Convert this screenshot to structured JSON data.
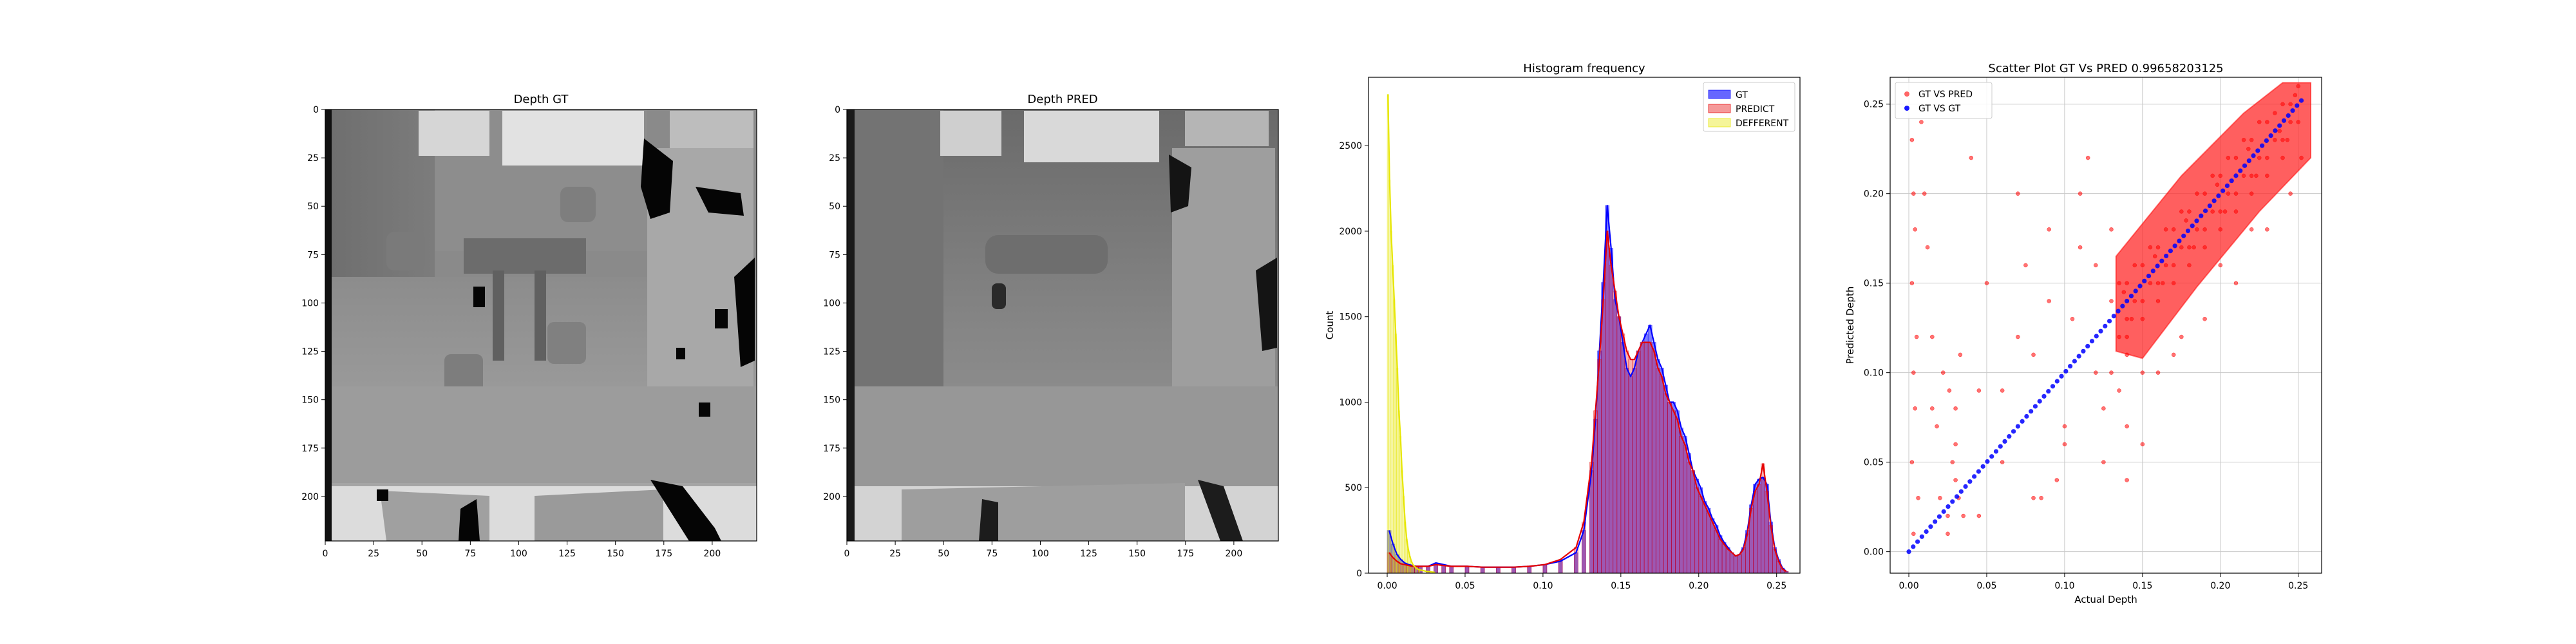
{
  "chart_data": [
    {
      "type": "heatmap",
      "title": "Depth GT",
      "xticks": [
        0,
        25,
        50,
        75,
        100,
        125,
        150,
        175,
        200
      ],
      "yticks": [
        0,
        25,
        50,
        75,
        100,
        125,
        150,
        175,
        200
      ],
      "xlim": [
        0,
        223
      ],
      "ylim": [
        223,
        0
      ],
      "colormap": "gray"
    },
    {
      "type": "heatmap",
      "title": "Depth PRED",
      "xticks": [
        0,
        25,
        50,
        75,
        100,
        125,
        150,
        175,
        200
      ],
      "yticks": [
        0,
        25,
        50,
        75,
        100,
        125,
        150,
        175,
        200
      ],
      "xlim": [
        0,
        223
      ],
      "ylim": [
        223,
        0
      ],
      "colormap": "gray"
    },
    {
      "type": "bar",
      "title": "Histogram frequency",
      "xlabel": "",
      "ylabel": "Count",
      "xlim": [
        -0.012,
        0.265
      ],
      "ylim": [
        0,
        2900
      ],
      "xticks": [
        "0.00",
        "0.05",
        "0.10",
        "0.15",
        "0.20",
        "0.25"
      ],
      "yticks": [
        "0",
        "500",
        "1000",
        "1500",
        "2000",
        "2500"
      ],
      "legend_position": "top-right",
      "series": [
        {
          "name": "GT",
          "color": "#0000ff",
          "bins_x": [
            0.0,
            0.0025,
            0.005,
            0.0075,
            0.01,
            0.0125,
            0.015,
            0.0175,
            0.02,
            0.025,
            0.03,
            0.035,
            0.04,
            0.05,
            0.06,
            0.07,
            0.08,
            0.09,
            0.1,
            0.11,
            0.12,
            0.125,
            0.13,
            0.1325,
            0.135,
            0.1375,
            0.14,
            0.1425,
            0.145,
            0.1475,
            0.15,
            0.1525,
            0.155,
            0.1575,
            0.16,
            0.1625,
            0.165,
            0.1675,
            0.17,
            0.1725,
            0.175,
            0.1775,
            0.18,
            0.1825,
            0.185,
            0.1875,
            0.19,
            0.1925,
            0.195,
            0.1975,
            0.2,
            0.2025,
            0.205,
            0.2075,
            0.21,
            0.2125,
            0.215,
            0.2175,
            0.22,
            0.2225,
            0.225,
            0.2275,
            0.23,
            0.2325,
            0.235,
            0.2375,
            0.24,
            0.2425,
            0.245,
            0.2475,
            0.25,
            0.2525,
            0.255
          ],
          "counts": [
            250,
            170,
            110,
            80,
            60,
            50,
            45,
            40,
            40,
            40,
            60,
            50,
            40,
            40,
            35,
            35,
            35,
            40,
            50,
            70,
            120,
            250,
            600,
            900,
            1300,
            1700,
            2150,
            1900,
            1600,
            1500,
            1350,
            1200,
            1150,
            1200,
            1300,
            1350,
            1400,
            1450,
            1350,
            1250,
            1200,
            1100,
            1000,
            1000,
            950,
            850,
            800,
            700,
            600,
            550,
            500,
            420,
            380,
            320,
            280,
            220,
            180,
            150,
            120,
            100,
            110,
            150,
            250,
            400,
            520,
            550,
            560,
            520,
            300,
            150,
            80,
            30,
            10
          ]
        },
        {
          "name": "PREDICT",
          "color": "#e60000",
          "bins_x": [
            0.0,
            0.0025,
            0.005,
            0.0075,
            0.01,
            0.0125,
            0.015,
            0.0175,
            0.02,
            0.025,
            0.03,
            0.035,
            0.04,
            0.05,
            0.06,
            0.07,
            0.08,
            0.09,
            0.1,
            0.11,
            0.12,
            0.125,
            0.13,
            0.1325,
            0.135,
            0.1375,
            0.14,
            0.1425,
            0.145,
            0.1475,
            0.15,
            0.1525,
            0.155,
            0.1575,
            0.16,
            0.1625,
            0.165,
            0.1675,
            0.17,
            0.1725,
            0.175,
            0.1775,
            0.18,
            0.1825,
            0.185,
            0.1875,
            0.19,
            0.1925,
            0.195,
            0.1975,
            0.2,
            0.2025,
            0.205,
            0.2075,
            0.21,
            0.2125,
            0.215,
            0.2175,
            0.22,
            0.2225,
            0.225,
            0.2275,
            0.23,
            0.2325,
            0.235,
            0.2375,
            0.24,
            0.2425,
            0.245,
            0.2475,
            0.25,
            0.2525,
            0.255
          ],
          "counts": [
            120,
            90,
            70,
            55,
            50,
            45,
            40,
            40,
            40,
            40,
            50,
            45,
            40,
            40,
            35,
            35,
            35,
            40,
            50,
            80,
            150,
            300,
            650,
            950,
            1250,
            1600,
            2000,
            1800,
            1650,
            1500,
            1400,
            1300,
            1250,
            1250,
            1300,
            1350,
            1350,
            1350,
            1300,
            1200,
            1150,
            1050,
            1000,
            950,
            900,
            800,
            750,
            650,
            600,
            500,
            450,
            400,
            350,
            300,
            250,
            200,
            170,
            140,
            120,
            100,
            110,
            140,
            230,
            380,
            480,
            520,
            640,
            480,
            280,
            140,
            70,
            25,
            10
          ]
        },
        {
          "name": "DEFFERENT",
          "color": "#e6e600",
          "bins_x": [
            0.0,
            0.001,
            0.002,
            0.003,
            0.004,
            0.005,
            0.006,
            0.007,
            0.008,
            0.009,
            0.01,
            0.011,
            0.012,
            0.013,
            0.014,
            0.015,
            0.016,
            0.018,
            0.02,
            0.025,
            0.03
          ],
          "counts": [
            2800,
            2300,
            2000,
            1800,
            1600,
            1400,
            1200,
            950,
            800,
            600,
            450,
            300,
            200,
            140,
            100,
            70,
            50,
            30,
            20,
            10,
            5
          ]
        }
      ]
    },
    {
      "type": "scatter",
      "title": "Scatter Plot GT Vs PRED 0.99658203125",
      "xlabel": "Actual Depth",
      "ylabel": "Predicted Depth",
      "xlim": [
        -0.012,
        0.265
      ],
      "ylim": [
        -0.012,
        0.265
      ],
      "xticks": [
        "0.00",
        "0.05",
        "0.10",
        "0.15",
        "0.20",
        "0.25"
      ],
      "yticks": [
        "0.00",
        "0.05",
        "0.10",
        "0.15",
        "0.20",
        "0.25"
      ],
      "grid": true,
      "legend_position": "top-left",
      "series": [
        {
          "name": "GT VS PRED",
          "color": "#ff0000",
          "x": [
            0.002,
            0.003,
            0.004,
            0.002,
            0.005,
            0.003,
            0.004,
            0.002,
            0.006,
            0.003,
            0.01,
            0.015,
            0.02,
            0.025,
            0.028,
            0.03,
            0.032,
            0.035,
            0.025,
            0.03,
            0.045,
            0.06,
            0.07,
            0.08,
            0.09,
            0.1,
            0.11,
            0.12,
            0.05,
            0.04,
            0.075,
            0.095,
            0.105,
            0.115,
            0.125,
            0.13,
            0.135,
            0.14,
            0.145,
            0.15,
            0.155,
            0.16,
            0.165,
            0.17,
            0.175,
            0.18,
            0.185,
            0.19,
            0.195,
            0.2,
            0.205,
            0.21,
            0.215,
            0.22,
            0.225,
            0.23,
            0.235,
            0.24,
            0.245,
            0.25,
            0.252,
            0.14,
            0.145,
            0.15,
            0.155,
            0.16,
            0.165,
            0.17,
            0.175,
            0.18,
            0.185,
            0.19,
            0.195,
            0.2,
            0.205,
            0.21,
            0.215,
            0.22,
            0.225,
            0.23,
            0.235,
            0.24,
            0.245,
            0.25,
            0.135,
            0.14,
            0.15,
            0.16,
            0.17,
            0.18,
            0.19,
            0.2,
            0.21,
            0.22,
            0.23,
            0.24,
            0.248,
            0.138,
            0.158,
            0.178,
            0.198,
            0.218,
            0.238,
            0.143,
            0.163,
            0.183,
            0.203,
            0.223,
            0.243,
            0.14,
            0.15,
            0.175,
            0.2,
            0.22,
            0.245,
            0.06,
            0.08,
            0.1,
            0.12,
            0.045,
            0.09,
            0.11,
            0.03,
            0.015,
            0.008,
            0.012,
            0.018,
            0.022,
            0.026,
            0.033,
            0.07,
            0.085,
            0.13,
            0.125,
            0.135,
            0.14,
            0.15,
            0.16,
            0.17,
            0.13,
            0.14,
            0.19,
            0.21,
            0.23
          ],
          "y": [
            0.23,
            0.2,
            0.18,
            0.15,
            0.12,
            0.1,
            0.08,
            0.05,
            0.03,
            0.01,
            0.2,
            0.08,
            0.03,
            0.02,
            0.05,
            0.06,
            0.03,
            0.02,
            0.01,
            0.04,
            0.09,
            0.05,
            0.12,
            0.03,
            0.18,
            0.07,
            0.2,
            0.1,
            0.15,
            0.22,
            0.16,
            0.04,
            0.13,
            0.22,
            0.08,
            0.14,
            0.12,
            0.15,
            0.14,
            0.16,
            0.15,
            0.17,
            0.16,
            0.18,
            0.17,
            0.19,
            0.18,
            0.2,
            0.19,
            0.21,
            0.2,
            0.22,
            0.21,
            0.23,
            0.22,
            0.24,
            0.23,
            0.25,
            0.24,
            0.26,
            0.22,
            0.13,
            0.16,
            0.14,
            0.17,
            0.15,
            0.18,
            0.16,
            0.19,
            0.17,
            0.2,
            0.18,
            0.21,
            0.19,
            0.22,
            0.2,
            0.23,
            0.21,
            0.24,
            0.22,
            0.245,
            0.23,
            0.25,
            0.24,
            0.15,
            0.12,
            0.13,
            0.14,
            0.15,
            0.16,
            0.17,
            0.18,
            0.19,
            0.2,
            0.21,
            0.22,
            0.255,
            0.145,
            0.165,
            0.185,
            0.205,
            0.225,
            0.235,
            0.13,
            0.15,
            0.17,
            0.19,
            0.21,
            0.23,
            0.11,
            0.1,
            0.12,
            0.16,
            0.18,
            0.2,
            0.09,
            0.11,
            0.06,
            0.16,
            0.02,
            0.14,
            0.17,
            0.08,
            0.12,
            0.24,
            0.17,
            0.07,
            0.1,
            0.09,
            0.11,
            0.2,
            0.03,
            0.1,
            0.05,
            0.09,
            0.07,
            0.06,
            0.1,
            0.11,
            0.18,
            0.04,
            0.13,
            0.15,
            0.18
          ]
        },
        {
          "name": "GT VS GT",
          "color": "#0000ff",
          "x": [
            0.0,
            0.252
          ],
          "y": [
            0.0,
            0.252
          ]
        }
      ]
    }
  ]
}
